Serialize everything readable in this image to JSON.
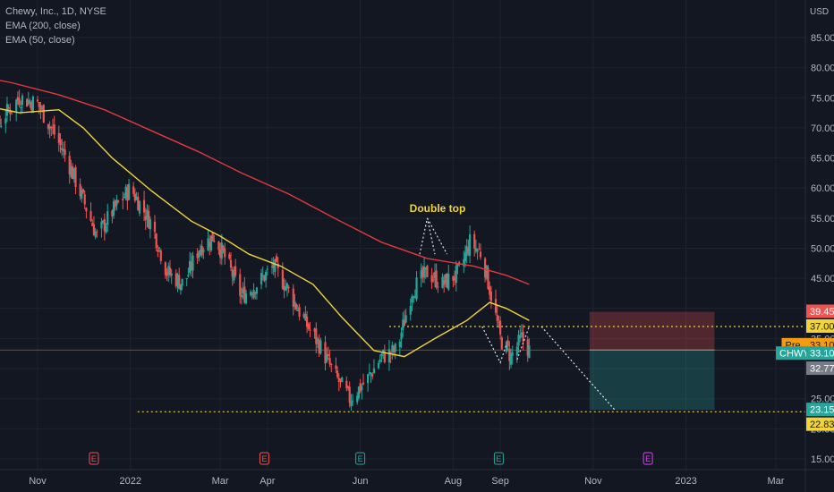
{
  "legend": {
    "symbol_line": "Chewy, Inc., 1D, NYSE",
    "ema200": "EMA (200, close)",
    "ema50": "EMA (50, close)"
  },
  "currency": "USD",
  "annotation": "Double top",
  "colors": {
    "background": "#131722",
    "up": "#26a69a",
    "down": "#ef5350",
    "ema200": "#e03a3e",
    "ema50": "#f0d43a",
    "dotted": "#f0d43a",
    "pre": "#f39c12",
    "last": "#26a69a",
    "stop": "#ef5350",
    "target": "#26a69a"
  },
  "price_tags": [
    {
      "label": "",
      "value": "39.45",
      "bg": "#ef5350",
      "fg": "#ffffff"
    },
    {
      "label": "",
      "value": "37.00",
      "bg": "#f0d43a",
      "fg": "#131722"
    },
    {
      "label": "Pre",
      "value": "33.10",
      "bg": "#f39c12",
      "fg": "#131722"
    },
    {
      "label": "CHWY",
      "value": "33.10",
      "bg": "#26a69a",
      "fg": "#ffffff"
    },
    {
      "label": "",
      "value": "32.77",
      "bg": "#787b86",
      "fg": "#ffffff"
    },
    {
      "label": "",
      "value": "23.15",
      "bg": "#26a69a",
      "fg": "#ffffff"
    },
    {
      "label": "",
      "value": "22.83",
      "bg": "#f0d43a",
      "fg": "#131722"
    }
  ],
  "chart_data": {
    "type": "line",
    "title": "Chewy, Inc., 1D, NYSE",
    "ylabel": "USD",
    "y_ticks": [
      15,
      20,
      25,
      30,
      35,
      40,
      45,
      50,
      55,
      60,
      65,
      70,
      75,
      80,
      85
    ],
    "x_ticks": [
      "Nov",
      "2022",
      "Mar",
      "Apr",
      "Jun",
      "Aug",
      "Sep",
      "Nov",
      "2023",
      "Mar"
    ],
    "x_tick_dates": [
      "2021-11-01",
      "2022-01-01",
      "2022-03-01",
      "2022-04-01",
      "2022-06-01",
      "2022-08-01",
      "2022-09-01",
      "2022-11-01",
      "2023-01-01",
      "2023-03-01"
    ],
    "earnings_dates": [
      "2021-12-08",
      "2022-03-30",
      "2022-06-01",
      "2022-08-31",
      "2022-12-07"
    ],
    "series": [
      {
        "name": "EMA (200, close)",
        "x": [
          "2021-09-15",
          "2021-10-15",
          "2021-11-15",
          "2021-12-15",
          "2022-01-15",
          "2022-02-15",
          "2022-03-15",
          "2022-04-15",
          "2022-05-15",
          "2022-06-15",
          "2022-07-15",
          "2022-08-15",
          "2022-09-05",
          "2022-09-20"
        ],
        "y": [
          79.0,
          77.5,
          75.5,
          73.0,
          69.5,
          66.0,
          62.5,
          59.0,
          55.0,
          51.0,
          48.3,
          47.0,
          45.5,
          44.0
        ]
      },
      {
        "name": "EMA (50, close)",
        "x": [
          "2021-09-15",
          "2021-10-01",
          "2021-10-20",
          "2021-11-15",
          "2021-12-01",
          "2021-12-20",
          "2022-01-15",
          "2022-02-10",
          "2022-03-01",
          "2022-03-20",
          "2022-04-10",
          "2022-05-01",
          "2022-05-20",
          "2022-06-10",
          "2022-06-30",
          "2022-07-20",
          "2022-08-10",
          "2022-08-25",
          "2022-09-05",
          "2022-09-20"
        ],
        "y": [
          77.0,
          73.5,
          72.5,
          73.0,
          70.0,
          65.0,
          59.5,
          54.5,
          52.0,
          49.0,
          47.0,
          44.0,
          38.5,
          33.0,
          32.0,
          35.0,
          38.0,
          41.0,
          40.0,
          38.0
        ]
      },
      {
        "name": "close",
        "x": [
          "2021-09-15",
          "2021-10-01",
          "2021-10-10",
          "2021-10-20",
          "2021-11-01",
          "2021-11-10",
          "2021-11-20",
          "2021-12-01",
          "2021-12-10",
          "2021-12-20",
          "2022-01-01",
          "2022-01-15",
          "2022-01-25",
          "2022-02-05",
          "2022-02-15",
          "2022-02-25",
          "2022-03-05",
          "2022-03-15",
          "2022-03-25",
          "2022-04-05",
          "2022-04-15",
          "2022-04-25",
          "2022-05-05",
          "2022-05-15",
          "2022-05-25",
          "2022-06-05",
          "2022-06-15",
          "2022-06-25",
          "2022-07-05",
          "2022-07-15",
          "2022-07-25",
          "2022-08-05",
          "2022-08-12",
          "2022-08-20",
          "2022-08-27",
          "2022-09-01",
          "2022-09-08",
          "2022-09-15",
          "2022-09-20"
        ],
        "y": [
          62,
          68,
          72,
          75,
          74,
          70,
          65,
          58,
          52,
          56,
          60,
          54,
          46,
          44,
          50,
          52,
          48,
          42,
          44,
          47,
          43,
          38,
          34,
          29,
          25,
          28,
          32,
          33,
          43,
          46,
          44,
          46,
          51,
          49,
          41,
          35,
          32,
          35,
          33.1
        ]
      }
    ],
    "levels": [
      {
        "value": 37.0,
        "style": "dotted"
      },
      {
        "value": 22.83,
        "style": "dotted"
      },
      {
        "value": 33.1,
        "style": "solid"
      }
    ],
    "position": {
      "entry": 33.1,
      "stop": 39.45,
      "target": 23.15
    },
    "y_range": [
      14,
      88
    ]
  }
}
